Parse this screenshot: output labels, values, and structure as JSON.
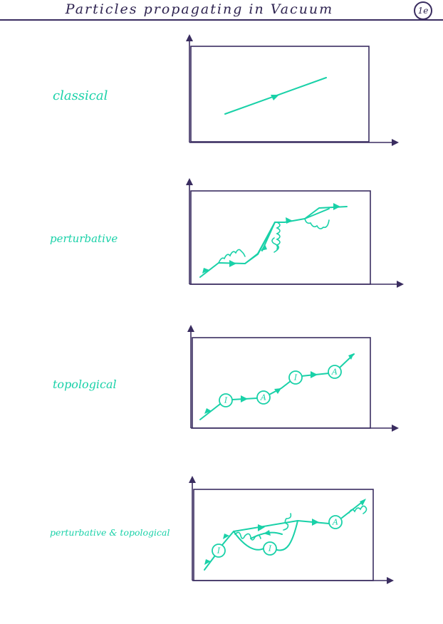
{
  "header": {
    "title": "Particles propagating in Vacuum",
    "page_number": "1e"
  },
  "panels": [
    {
      "label": "classical"
    },
    {
      "label": "perturbative"
    },
    {
      "label": "topological",
      "nodes": [
        "I",
        "A",
        "I",
        "A"
      ]
    },
    {
      "label": "perturbative & topological",
      "nodes": [
        "I",
        "I",
        "A"
      ]
    }
  ],
  "colors": {
    "ink": "#3a2d60",
    "trajectory": "#19d1a8"
  }
}
